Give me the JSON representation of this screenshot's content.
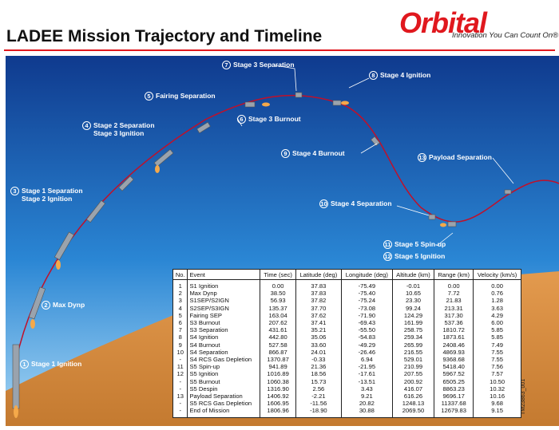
{
  "header": {
    "title": "LADEE Mission Trajectory and Timeline",
    "logo": "Orbital",
    "tagline": "Innovation You Can Count On®"
  },
  "events": [
    {
      "num": "1",
      "label": "Stage 1 Ignition"
    },
    {
      "num": "2",
      "label": "Max Dynp"
    },
    {
      "num": "3",
      "label": "Stage 1 Separation",
      "label2": "Stage 2 Ignition"
    },
    {
      "num": "4",
      "label": "Stage 2 Separation",
      "label2": "Stage 3 Ignition"
    },
    {
      "num": "5",
      "label": "Fairing Separation"
    },
    {
      "num": "6",
      "label": "Stage 3 Burnout"
    },
    {
      "num": "7",
      "label": "Stage 3 Separation"
    },
    {
      "num": "8",
      "label": "Stage 4 Ignition"
    },
    {
      "num": "9",
      "label": "Stage 4 Burnout"
    },
    {
      "num": "10",
      "label": "Stage 4 Separation"
    },
    {
      "num": "11",
      "label": "Stage 5 Spin-up"
    },
    {
      "num": "12",
      "label": "Stage 5 Ignition"
    },
    {
      "num": "13",
      "label": "Payload Separation"
    }
  ],
  "table": {
    "headers": [
      "No.",
      "Event",
      "Time (sec)",
      "Latitude (deg)",
      "Longitude (deg)",
      "Altitude (km)",
      "Range (km)",
      "Velocity (km/s)"
    ],
    "rows": [
      [
        "1",
        "S1 Ignition",
        "0.00",
        "37.83",
        "-75.49",
        "-0.01",
        "0.00",
        "0.00"
      ],
      [
        "2",
        "Max Dynp",
        "38.50",
        "37.83",
        "-75.40",
        "10.65",
        "7.72",
        "0.76"
      ],
      [
        "3",
        "S1SEP/S2IGN",
        "56.93",
        "37.82",
        "-75.24",
        "23.30",
        "21.83",
        "1.28"
      ],
      [
        "4",
        "S2SEP/S3IGN",
        "135.37",
        "37.70",
        "-73.08",
        "99.24",
        "213.31",
        "3.63"
      ],
      [
        "5",
        "Fairing SEP",
        "163.04",
        "37.62",
        "-71.90",
        "124.29",
        "317.30",
        "4.29"
      ],
      [
        "6",
        "S3 Burnout",
        "207.62",
        "37.41",
        "-69.43",
        "161.99",
        "537.36",
        "6.00"
      ],
      [
        "7",
        "S3 Separation",
        "431.61",
        "35.21",
        "-55.50",
        "258.75",
        "1810.72",
        "5.85"
      ],
      [
        "8",
        "S4 Ignition",
        "442.80",
        "35.06",
        "-54.83",
        "259.34",
        "1873.61",
        "5.85"
      ],
      [
        "9",
        "S4 Burnout",
        "527.58",
        "33.60",
        "-49.29",
        "265.99",
        "2408.46",
        "7.49"
      ],
      [
        "10",
        "S4 Separation",
        "866.87",
        "24.01",
        "-26.46",
        "216.55",
        "4869.93",
        "7.55"
      ],
      [
        "-",
        "S4 RCS Gas Depletion",
        "1370.87",
        "-0.33",
        "6.94",
        "529.01",
        "9368.68",
        "7.55"
      ],
      [
        "11",
        "S5 Spin-up",
        "941.89",
        "21.36",
        "-21.95",
        "210.99",
        "5418.40",
        "7.56"
      ],
      [
        "12",
        "S5 Ignition",
        "1016.89",
        "18.56",
        "-17.61",
        "207.55",
        "5967.52",
        "7.57"
      ],
      [
        "-",
        "S5 Burnout",
        "1060.38",
        "15.73",
        "-13.51",
        "200.92",
        "6505.25",
        "10.50"
      ],
      [
        "-",
        "S5 Despin",
        "1316.90",
        "2.56",
        "3.43",
        "416.07",
        "8863.23",
        "10.32"
      ],
      [
        "13",
        "Payload Separation",
        "1406.92",
        "-2.21",
        "9.21",
        "616.26",
        "9696.17",
        "10.16"
      ],
      [
        "-",
        "S5 RCS Gas Depletion",
        "1606.95",
        "-11.56",
        "20.82",
        "1248.13",
        "11337.68",
        "9.68"
      ],
      [
        "-",
        "End of Mission",
        "1806.96",
        "-18.90",
        "30.88",
        "2069.50",
        "12679.83",
        "9.15"
      ]
    ]
  },
  "figure_code": "TM23863_001",
  "colors": {
    "brand": "#e0181e",
    "trajectory": "#c0102a",
    "sky_top": "#0f3a8e",
    "sky_bottom": "#8fcaf0",
    "ground": "#d4873c"
  }
}
